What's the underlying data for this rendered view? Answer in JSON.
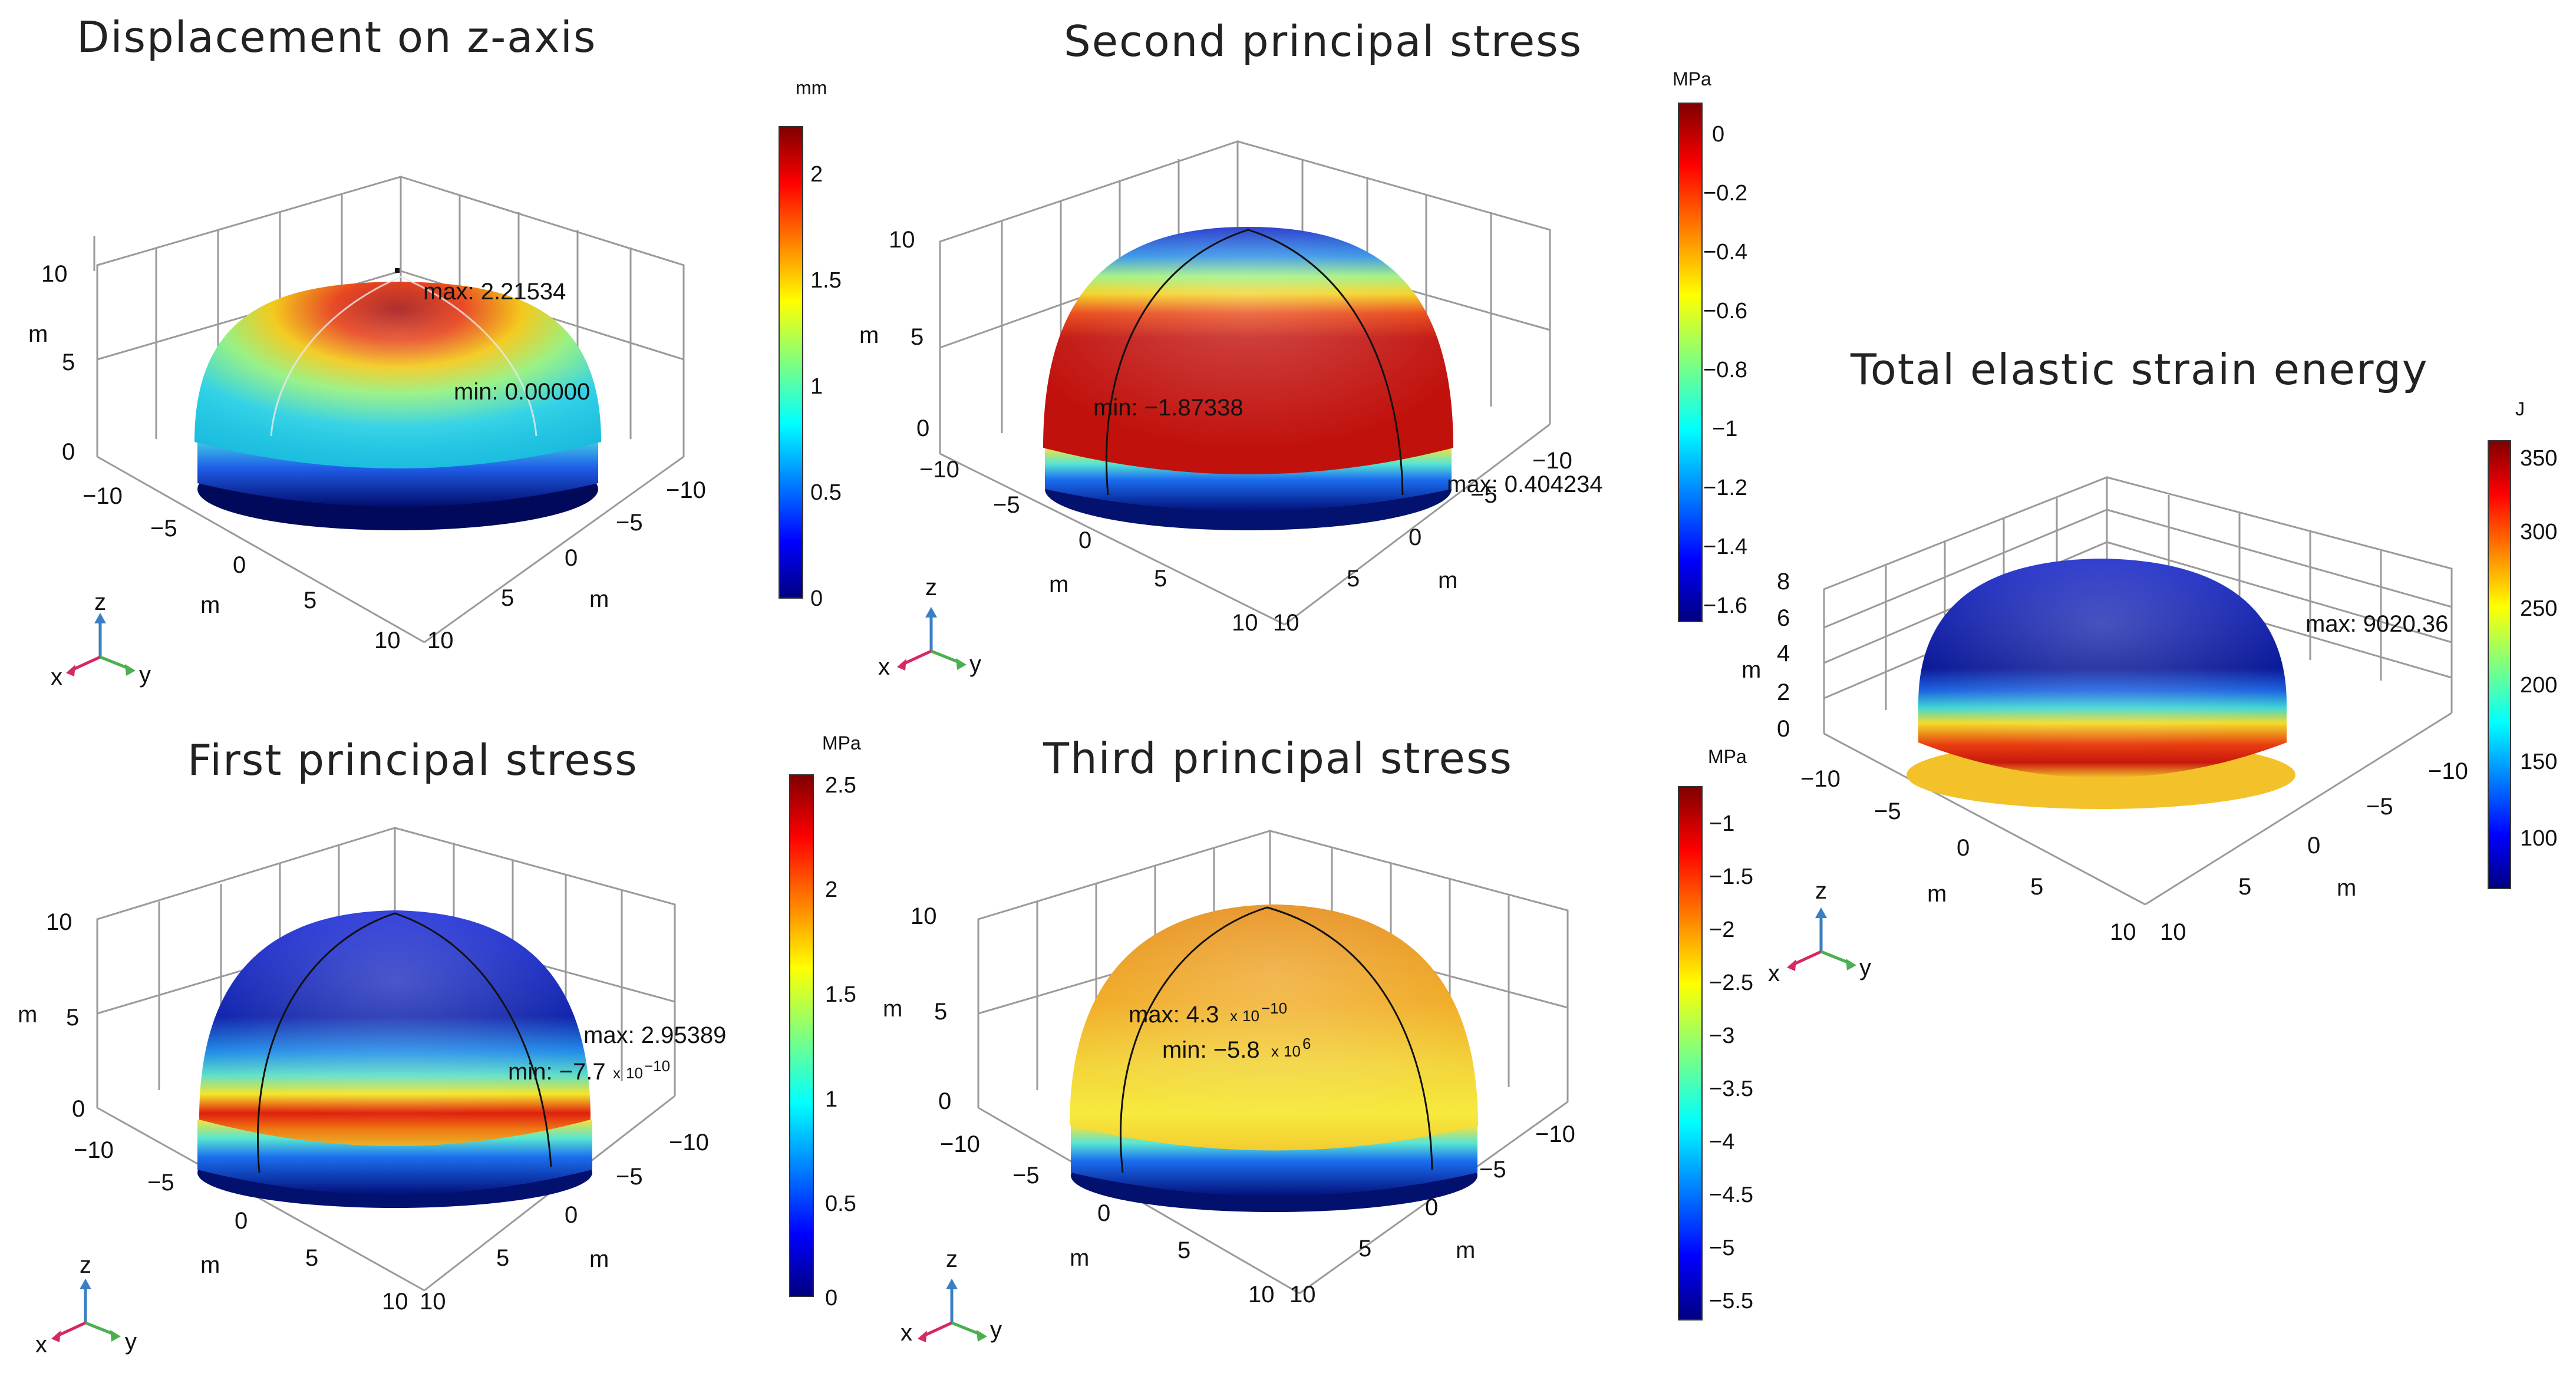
{
  "panels": [
    {
      "title": "Displacement on z-axis",
      "unit": "mm",
      "cb_ticks": [
        "2",
        "1.5",
        "1",
        "0.5",
        "0"
      ],
      "z_ticks": [
        "10",
        "5",
        "0"
      ],
      "x_ticks": [
        "−10",
        "−5",
        "0",
        "5",
        "10"
      ],
      "y_ticks": [
        "−10",
        "−5",
        "0",
        "5",
        "10"
      ],
      "axis_unit": "m",
      "ann_max": "max: 2.21534",
      "ann_min": "min: 0.00000"
    },
    {
      "title": "Second principal stress",
      "unit": "MPa",
      "cb_ticks": [
        "0",
        "−0.2",
        "−0.4",
        "−0.6",
        "−0.8",
        "−1",
        "−1.2",
        "−1.4",
        "−1.6"
      ],
      "z_ticks": [
        "10",
        "5",
        "0"
      ],
      "x_ticks": [
        "−10",
        "−5",
        "0",
        "5",
        "10"
      ],
      "y_ticks": [
        "−10",
        "−5",
        "0",
        "5",
        "10"
      ],
      "axis_unit": "m",
      "ann_max": "max: 0.404234",
      "ann_min": "min: −1.87338"
    },
    {
      "title": "Total elastic strain energy",
      "unit": "J",
      "cb_ticks": [
        "350",
        "300",
        "250",
        "200",
        "150",
        "100"
      ],
      "z_ticks": [
        "8",
        "6",
        "4",
        "2",
        "0"
      ],
      "x_ticks": [
        "−10",
        "−5",
        "0",
        "5",
        "10"
      ],
      "y_ticks": [
        "−10",
        "−5",
        "0",
        "5",
        "10"
      ],
      "axis_unit": "m",
      "ann_max": "max: 9020.36"
    },
    {
      "title": "First principal stress",
      "unit": "MPa",
      "cb_ticks": [
        "2.5",
        "2",
        "1.5",
        "1",
        "0.5",
        "0"
      ],
      "z_ticks": [
        "10",
        "5",
        "0"
      ],
      "x_ticks": [
        "−10",
        "−5",
        "0",
        "5",
        "10"
      ],
      "y_ticks": [
        "−10",
        "−5",
        "0",
        "5",
        "10"
      ],
      "axis_unit": "m",
      "ann_max": "max: 2.95389",
      "ann_min_base": "min: −7.7",
      "ann_min_x": "x",
      "ann_min_pow": "10",
      "ann_min_exp": "−10"
    },
    {
      "title": "Third principal stress",
      "unit": "MPa",
      "cb_ticks": [
        "−1",
        "−1.5",
        "−2",
        "−2.5",
        "−3",
        "−3.5",
        "−4",
        "−4.5",
        "−5",
        "−5.5"
      ],
      "z_ticks": [
        "10",
        "5",
        "0"
      ],
      "x_ticks": [
        "−10",
        "−5",
        "0",
        "5",
        "10"
      ],
      "y_ticks": [
        "−10",
        "−5",
        "0",
        "5",
        "10"
      ],
      "axis_unit": "m",
      "ann_max_base": "max: 4.3",
      "ann_max_x": "x",
      "ann_max_pow": "10",
      "ann_max_exp": "−10",
      "ann_min_base": "min: −5.8",
      "ann_min_x": "x",
      "ann_min_pow": "10",
      "ann_min_exp": "6"
    }
  ],
  "triad": {
    "x": "x",
    "y": "y",
    "z": "z"
  },
  "colors": {
    "jet_low": "#00007f",
    "jet_mid": "#7fff7f",
    "jet_high": "#7f0000",
    "triad_x": "#d6295f",
    "triad_y": "#4caf50",
    "triad_z": "#3a7fc4"
  }
}
